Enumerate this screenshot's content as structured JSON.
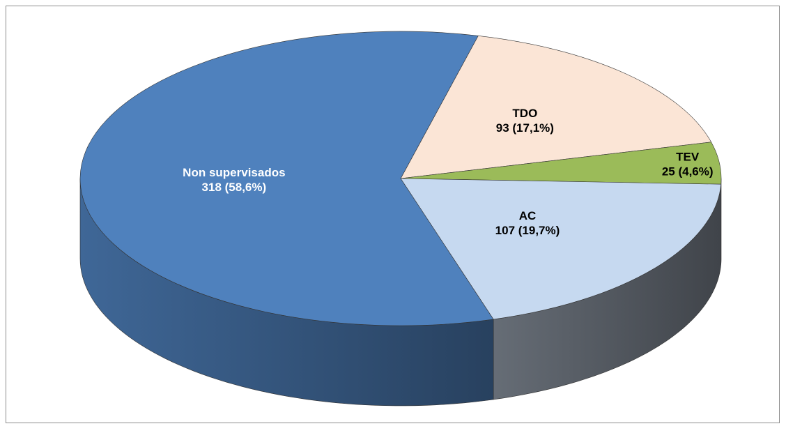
{
  "chart_data": {
    "type": "pie",
    "categories": [
      "TDO",
      "TEV",
      "AC",
      "Non supervisados"
    ],
    "values": [
      93,
      25,
      107,
      318
    ],
    "value_labels": [
      "93 (17,1%)",
      "25 (4,6%)",
      "107 (19,7%)",
      "318 (58,6%)"
    ],
    "colors": [
      "#fbe5d6",
      "#9bbb59",
      "#c6d9f0",
      "#4f81bd"
    ]
  }
}
